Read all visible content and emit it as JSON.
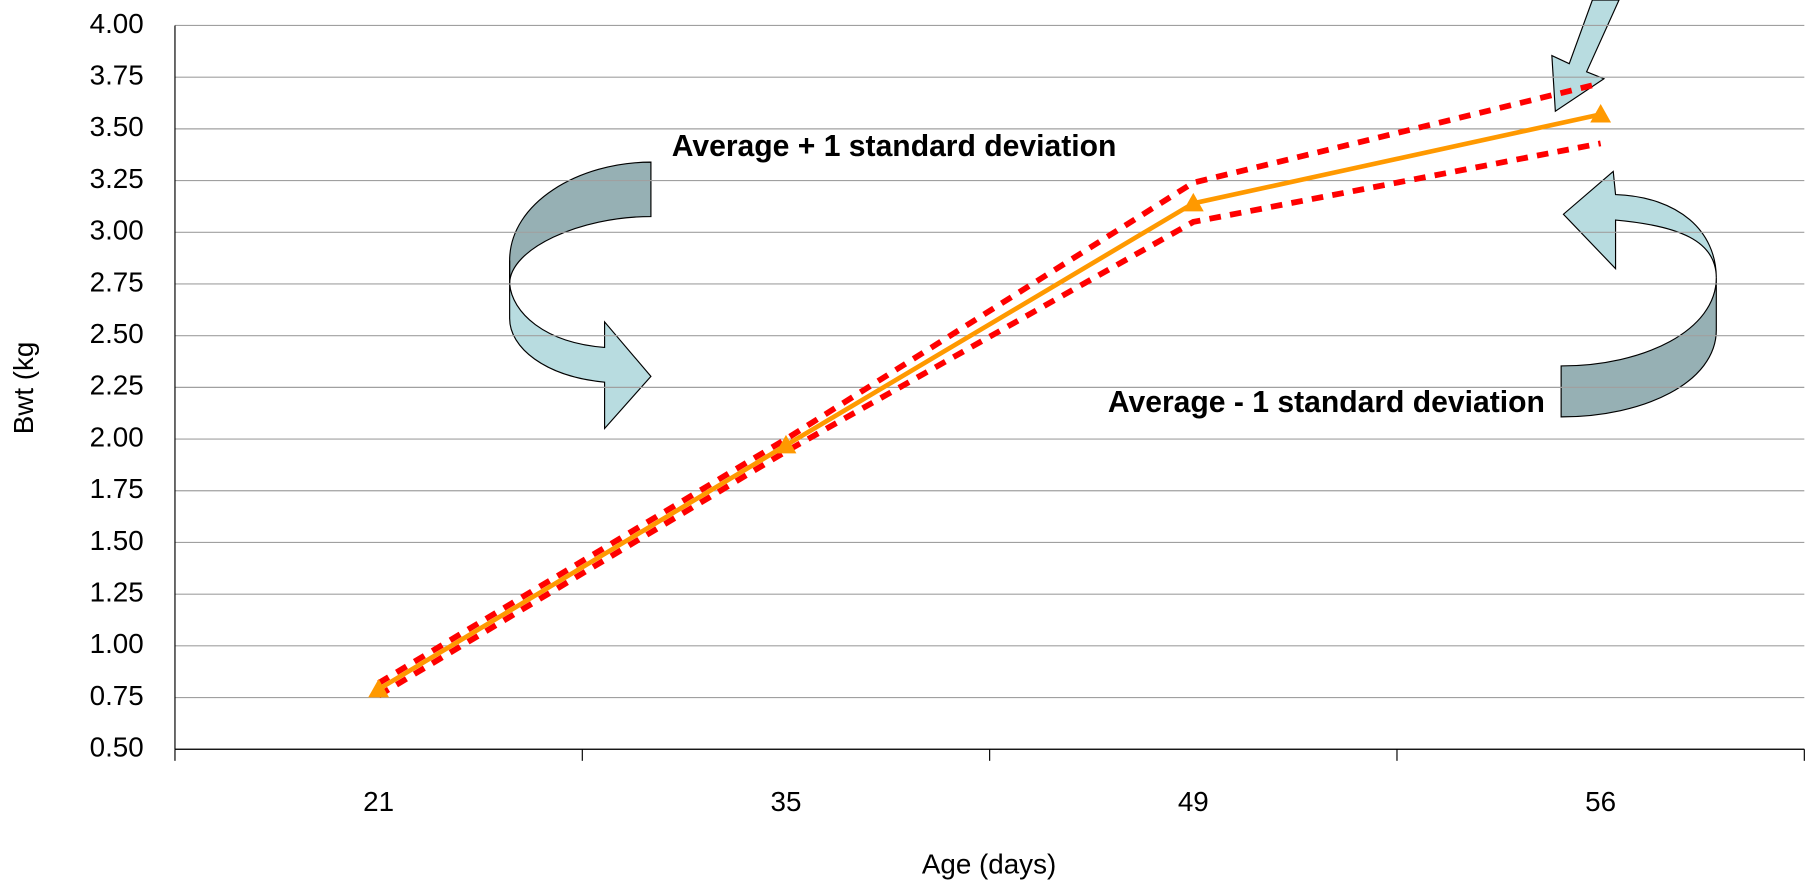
{
  "chart_data": {
    "type": "line",
    "categories": [
      "21",
      "35",
      "49",
      "56"
    ],
    "series": [
      {
        "color": "#ff9900",
        "values": [
          0.79,
          1.97,
          3.14,
          3.57
        ],
        "style": "solid",
        "marker": "triangle"
      },
      {
        "color": "#ff0000",
        "values": [
          0.82,
          2.0,
          3.24,
          3.72
        ],
        "style": "dashed"
      },
      {
        "color": "#ff0000",
        "values": [
          0.76,
          1.94,
          3.05,
          3.43
        ],
        "style": "dashed"
      }
    ],
    "xlabel": "Age (days)",
    "ylabel": "Bwt (kg",
    "ylim": [
      0.5,
      4.0
    ],
    "yticks": [
      {
        "value": 0.5,
        "label": "0.50"
      },
      {
        "value": 0.75,
        "label": "0.75"
      },
      {
        "value": 1.0,
        "label": "1.00"
      },
      {
        "value": 1.25,
        "label": "1.25"
      },
      {
        "value": 1.5,
        "label": "1.50"
      },
      {
        "value": 1.75,
        "label": "1.75"
      },
      {
        "value": 2.0,
        "label": "2.00"
      },
      {
        "value": 2.25,
        "label": "2.25"
      },
      {
        "value": 2.5,
        "label": "2.50"
      },
      {
        "value": 2.75,
        "label": "2.75"
      },
      {
        "value": 3.0,
        "label": "3.00"
      },
      {
        "value": 3.25,
        "label": "3.25"
      },
      {
        "value": 3.5,
        "label": "3.50"
      },
      {
        "value": 3.75,
        "label": "3.75"
      },
      {
        "value": 4.0,
        "label": "4.00"
      }
    ],
    "grid": true,
    "annotations": [
      "Average + 1 standard deviation",
      "Average - 1 standard deviation"
    ]
  }
}
